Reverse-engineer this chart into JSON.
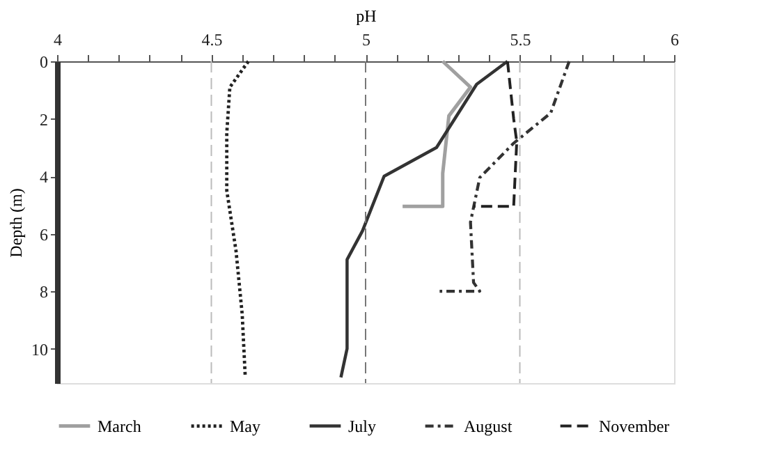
{
  "chart_data": {
    "type": "line",
    "xlabel": "pH",
    "ylabel": "Depth (m)",
    "xlim": [
      4,
      6
    ],
    "ylim": [
      11.2,
      0
    ],
    "xticks": [
      4,
      {
        "value": 4.1,
        "label": null
      },
      {
        "value": 4.2,
        "label": null
      },
      {
        "value": 4.3,
        "label": null
      },
      {
        "value": 4.4,
        "label": null
      },
      4.5,
      {
        "value": 4.6,
        "label": null
      },
      {
        "value": 4.7,
        "label": null
      },
      {
        "value": 4.8,
        "label": null
      },
      {
        "value": 4.9,
        "label": null
      },
      5,
      {
        "value": 5.1,
        "label": null
      },
      {
        "value": 5.2,
        "label": null
      },
      {
        "value": 5.3,
        "label": null
      },
      {
        "value": 5.4,
        "label": null
      },
      5.5,
      {
        "value": 5.6,
        "label": null
      },
      {
        "value": 5.7,
        "label": null
      },
      {
        "value": 5.8,
        "label": null
      },
      {
        "value": 5.9,
        "label": null
      },
      6
    ],
    "yticks": [
      0,
      2,
      4,
      6,
      8,
      10
    ],
    "legend": "bottom",
    "grid": false,
    "ref_lines": [
      {
        "axis": "x",
        "value": 4.5,
        "color": "#bbbbbb",
        "line_style": "dashed"
      },
      {
        "axis": "x",
        "value": 5,
        "color": "#777777",
        "line_style": "dashed"
      },
      {
        "axis": "x",
        "value": 5.5,
        "color": "#bbbbbb",
        "line_style": "dashed"
      }
    ],
    "series": [
      {
        "name": "March",
        "color": "#a0a0a0",
        "line_style": "solid",
        "x": [
          5.25,
          5.34,
          5.27,
          5.25,
          5.25,
          5.12
        ],
        "values": [
          0,
          0.9,
          1.9,
          3.9,
          5.05,
          5.05
        ]
      },
      {
        "name": "May",
        "color": "#222222",
        "line_style": "dotted",
        "x": [
          4.62,
          4.56,
          4.55,
          4.55,
          4.58,
          4.6,
          4.61
        ],
        "values": [
          0,
          0.9,
          2.5,
          4.5,
          6.6,
          8.8,
          11.0
        ]
      },
      {
        "name": "July",
        "color": "#333333",
        "line_style": "solid",
        "x": [
          5.46,
          5.36,
          5.23,
          5.06,
          4.99,
          4.94,
          4.94,
          4.94,
          4.92
        ],
        "values": [
          0,
          0.8,
          3.0,
          4.0,
          5.9,
          6.9,
          9.2,
          10.0,
          11.0
        ]
      },
      {
        "name": "August",
        "color": "#333333",
        "line_style": "dashdot",
        "x": [
          5.66,
          5.6,
          5.48,
          5.37,
          5.34,
          5.35,
          5.37,
          5.24
        ],
        "values": [
          0,
          1.8,
          2.85,
          4.05,
          5.6,
          7.7,
          8.0,
          8.0
        ]
      },
      {
        "name": "November",
        "color": "#222222",
        "line_style": "dashed",
        "x": [
          5.46,
          5.48,
          5.49,
          5.48,
          5.35
        ],
        "values": [
          0,
          2.0,
          2.8,
          5.05,
          5.05
        ]
      }
    ]
  }
}
